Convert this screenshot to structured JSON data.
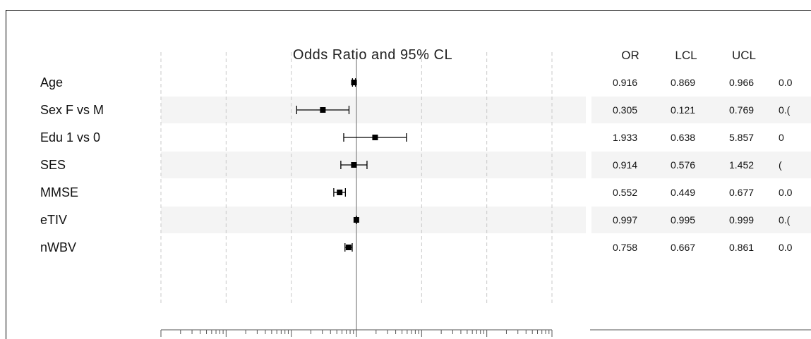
{
  "chart_data": {
    "type": "forest",
    "title": "Odds Ratio and 95% CL",
    "x_scale": "log",
    "xlim": [
      0.001,
      1000
    ],
    "reference_line": 1,
    "table_headers": [
      "OR",
      "LCL",
      "UCL"
    ],
    "rows": [
      {
        "label": "Age",
        "or": 0.916,
        "lcl": 0.869,
        "ucl": 0.966,
        "or_text": "0.916",
        "lcl_text": "0.869",
        "ucl_text": "0.966",
        "extra_text": "0.0"
      },
      {
        "label": "Sex F vs M",
        "or": 0.305,
        "lcl": 0.121,
        "ucl": 0.769,
        "or_text": "0.305",
        "lcl_text": "0.121",
        "ucl_text": "0.769",
        "extra_text": "0.("
      },
      {
        "label": "Edu 1 vs 0",
        "or": 1.933,
        "lcl": 0.638,
        "ucl": 5.857,
        "or_text": "1.933",
        "lcl_text": "0.638",
        "ucl_text": "5.857",
        "extra_text": "0"
      },
      {
        "label": "SES",
        "or": 0.914,
        "lcl": 0.576,
        "ucl": 1.452,
        "or_text": "0.914",
        "lcl_text": "0.576",
        "ucl_text": "1.452",
        "extra_text": "("
      },
      {
        "label": "MMSE",
        "or": 0.552,
        "lcl": 0.449,
        "ucl": 0.677,
        "or_text": "0.552",
        "lcl_text": "0.449",
        "ucl_text": "0.677",
        "extra_text": "0.0"
      },
      {
        "label": "eTIV",
        "or": 0.997,
        "lcl": 0.995,
        "ucl": 0.999,
        "or_text": "0.997",
        "lcl_text": "0.995",
        "ucl_text": "0.999",
        "extra_text": "0.("
      },
      {
        "label": "nWBV",
        "or": 0.758,
        "lcl": 0.667,
        "ucl": 0.861,
        "or_text": "0.758",
        "lcl_text": "0.667",
        "ucl_text": "0.861",
        "extra_text": "0.0"
      }
    ],
    "colors": {
      "band": "#f4f4f4",
      "grid": "#c8c8c8",
      "reference": "#9a9a9a",
      "marker": "#000000"
    }
  }
}
